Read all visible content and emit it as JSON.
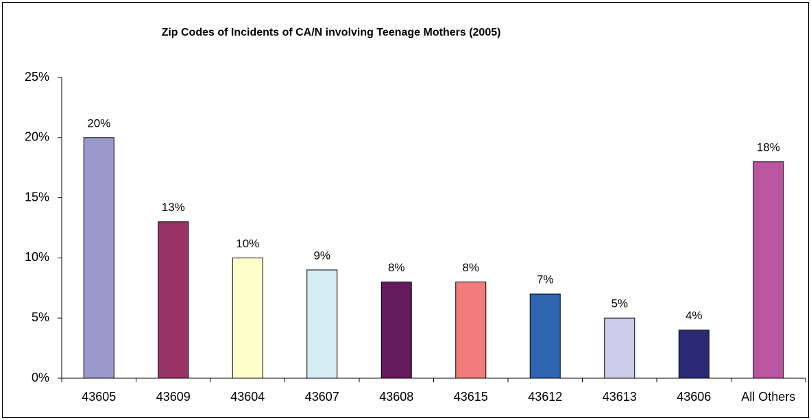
{
  "chart_data": {
    "type": "bar",
    "title": "Zip Codes of Incidents of CA/N involving Teenage Mothers (2005)",
    "categories": [
      "43605",
      "43609",
      "43604",
      "43607",
      "43608",
      "43615",
      "43612",
      "43613",
      "43606",
      "All Others"
    ],
    "values": [
      20,
      13,
      10,
      9,
      8,
      8,
      7,
      5,
      4,
      18
    ],
    "value_labels": [
      "20%",
      "13%",
      "10%",
      "9%",
      "8%",
      "8%",
      "7%",
      "5%",
      "4%",
      "18%"
    ],
    "colors": [
      "#9999cc",
      "#993366",
      "#ffffcc",
      "#d4ecf2",
      "#661a5e",
      "#f27b7b",
      "#2f66b3",
      "#ccccea",
      "#2a2a74",
      "#bb55a0"
    ],
    "ylim": [
      0,
      25
    ],
    "yticks": [
      {
        "value": 0,
        "label": "0%"
      },
      {
        "value": 5,
        "label": "5%"
      },
      {
        "value": 10,
        "label": "10%"
      },
      {
        "value": 15,
        "label": "15%"
      },
      {
        "value": 20,
        "label": "20%"
      },
      {
        "value": 25,
        "label": "25%"
      }
    ],
    "grid": false
  }
}
